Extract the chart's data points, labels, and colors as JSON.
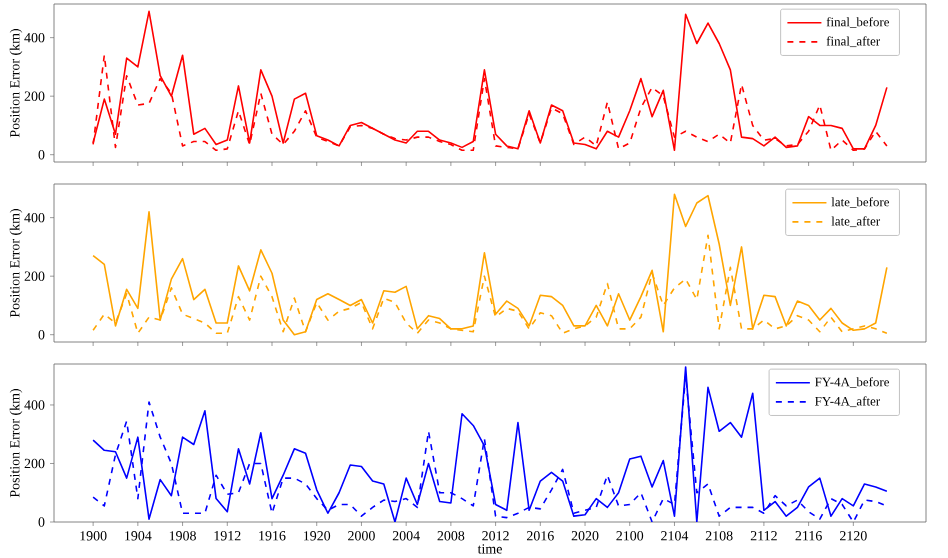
{
  "chart_data": [
    {
      "type": "line",
      "ylabel": "Position Error (km)",
      "ylim": [
        -25,
        515
      ],
      "yticks": [
        0,
        200,
        400
      ],
      "legend": "top right",
      "tick_labels": "y",
      "categories": [
        null,
        null,
        null,
        null,
        null,
        null,
        null,
        null,
        null,
        null,
        null,
        null,
        null,
        null,
        null,
        null,
        null,
        null,
        null,
        null,
        null,
        null,
        null,
        null,
        null,
        null,
        null,
        null,
        null,
        null,
        null,
        null,
        null,
        null,
        null,
        null,
        null,
        null,
        null,
        null,
        null,
        null,
        null,
        null,
        null,
        null,
        null,
        null,
        null,
        null,
        null,
        null,
        null,
        null,
        null,
        null,
        null,
        null,
        null,
        null,
        null,
        null,
        null,
        null,
        null,
        null,
        null,
        null,
        null,
        null,
        null,
        null
      ],
      "series": [
        {
          "name": "final_before",
          "color": "#ff0000",
          "line_style": "solid",
          "values": [
            40,
            190,
            70,
            330,
            300,
            490,
            270,
            200,
            340,
            70,
            90,
            35,
            50,
            235,
            40,
            290,
            200,
            40,
            190,
            210,
            65,
            50,
            30,
            100,
            110,
            90,
            70,
            50,
            40,
            80,
            80,
            50,
            40,
            25,
            45,
            290,
            70,
            30,
            20,
            150,
            40,
            170,
            150,
            40,
            35,
            20,
            80,
            60,
            150,
            260,
            130,
            220,
            15,
            480,
            380,
            450,
            380,
            290,
            60,
            55,
            30,
            60,
            25,
            30,
            130,
            100,
            100,
            90,
            20,
            20,
            100,
            230
          ]
        },
        {
          "name": "final_after",
          "color": "#ff0000",
          "line_style": "dashed",
          "values": [
            35,
            340,
            25,
            270,
            170,
            175,
            260,
            210,
            30,
            45,
            45,
            15,
            20,
            150,
            35,
            210,
            70,
            35,
            80,
            150,
            60,
            45,
            30,
            95,
            100,
            90,
            70,
            55,
            50,
            60,
            60,
            45,
            35,
            15,
            15,
            260,
            30,
            25,
            20,
            140,
            40,
            160,
            140,
            35,
            60,
            30,
            180,
            20,
            40,
            160,
            230,
            200,
            60,
            80,
            60,
            45,
            70,
            40,
            240,
            100,
            50,
            55,
            30,
            35,
            80,
            170,
            15,
            50,
            15,
            20,
            80,
            30
          ]
        }
      ]
    },
    {
      "type": "line",
      "ylabel": "Position Error (km)",
      "ylim": [
        -25,
        515
      ],
      "yticks": [
        0,
        200,
        400
      ],
      "legend": "top right",
      "tick_labels": "y",
      "categories": [
        null,
        null,
        null,
        null,
        null,
        null,
        null,
        null,
        null,
        null,
        null,
        null,
        null,
        null,
        null,
        null,
        null,
        null,
        null,
        null,
        null,
        null,
        null,
        null,
        null,
        null,
        null,
        null,
        null,
        null,
        null,
        null,
        null,
        null,
        null,
        null,
        null,
        null,
        null,
        null,
        null,
        null,
        null,
        null,
        null,
        null,
        null,
        null,
        null,
        null,
        null,
        null,
        null,
        null,
        null,
        null,
        null,
        null,
        null,
        null,
        null,
        null,
        null,
        null,
        null,
        null,
        null,
        null,
        null,
        null,
        null,
        null
      ],
      "series": [
        {
          "name": "late_before",
          "color": "#ffa500",
          "line_style": "solid",
          "values": [
            270,
            240,
            30,
            155,
            90,
            420,
            50,
            190,
            260,
            120,
            155,
            40,
            40,
            235,
            150,
            290,
            210,
            50,
            0,
            10,
            120,
            140,
            120,
            100,
            120,
            40,
            150,
            145,
            165,
            20,
            65,
            55,
            20,
            20,
            30,
            280,
            70,
            115,
            90,
            30,
            135,
            130,
            100,
            30,
            30,
            100,
            30,
            140,
            50,
            130,
            220,
            10,
            480,
            370,
            450,
            475,
            310,
            100,
            300,
            20,
            135,
            130,
            30,
            115,
            100,
            50,
            90,
            40,
            15,
            20,
            40,
            230
          ]
        },
        {
          "name": "late_after",
          "color": "#ffa500",
          "line_style": "dashed",
          "values": [
            15,
            70,
            40,
            140,
            5,
            60,
            50,
            160,
            70,
            55,
            40,
            5,
            5,
            130,
            50,
            200,
            130,
            10,
            125,
            10,
            110,
            50,
            80,
            90,
            110,
            20,
            125,
            110,
            40,
            5,
            50,
            40,
            20,
            15,
            10,
            200,
            60,
            90,
            80,
            20,
            75,
            65,
            5,
            20,
            30,
            60,
            175,
            20,
            20,
            60,
            210,
            100,
            160,
            190,
            120,
            340,
            20,
            230,
            20,
            20,
            50,
            20,
            30,
            65,
            50,
            10,
            60,
            10,
            20,
            30,
            20,
            5
          ]
        }
      ]
    },
    {
      "type": "line",
      "ylabel": "Position Error (km)",
      "xlabel": "time",
      "ylim": [
        0,
        540
      ],
      "yticks": [
        0,
        200,
        400
      ],
      "legend": "top right",
      "categories": [
        "1900",
        null,
        null,
        null,
        "1904",
        null,
        null,
        null,
        "1908",
        null,
        null,
        null,
        "1912",
        null,
        null,
        null,
        "1916",
        null,
        null,
        null,
        "1920",
        null,
        null,
        null,
        "2000",
        null,
        null,
        null,
        "2004",
        null,
        null,
        null,
        "2008",
        null,
        null,
        null,
        "2012",
        null,
        null,
        null,
        "2016",
        null,
        null,
        null,
        "2020",
        null,
        null,
        null,
        "2100",
        null,
        null,
        null,
        "2104",
        null,
        null,
        null,
        "2108",
        null,
        null,
        null,
        "2112",
        null,
        null,
        null,
        "2116",
        null,
        null,
        null,
        "2120",
        null,
        null,
        null
      ],
      "series": [
        {
          "name": "FY-4A_before",
          "color": "#0000ff",
          "line_style": "solid",
          "values": [
            280,
            245,
            240,
            150,
            290,
            10,
            145,
            90,
            290,
            265,
            380,
            80,
            35,
            250,
            130,
            305,
            80,
            160,
            250,
            235,
            110,
            30,
            100,
            195,
            190,
            140,
            130,
            0,
            150,
            60,
            200,
            70,
            65,
            370,
            330,
            260,
            60,
            40,
            340,
            40,
            140,
            170,
            140,
            20,
            25,
            80,
            50,
            100,
            215,
            225,
            120,
            210,
            20,
            530,
            0,
            460,
            310,
            340,
            290,
            440,
            40,
            70,
            20,
            50,
            120,
            150,
            20,
            80,
            55,
            130,
            120,
            105
          ]
        },
        {
          "name": "FY-4A_after",
          "color": "#0000ff",
          "line_style": "dashed",
          "values": [
            85,
            55,
            230,
            345,
            80,
            410,
            290,
            200,
            30,
            30,
            30,
            160,
            95,
            100,
            200,
            200,
            30,
            150,
            150,
            130,
            80,
            40,
            60,
            60,
            20,
            50,
            75,
            70,
            80,
            50,
            310,
            100,
            100,
            80,
            55,
            285,
            20,
            15,
            30,
            50,
            45,
            110,
            180,
            30,
            40,
            50,
            160,
            55,
            60,
            100,
            0,
            80,
            60,
            500,
            100,
            130,
            20,
            50,
            50,
            50,
            30,
            90,
            55,
            75,
            35,
            10,
            80,
            60,
            0,
            75,
            70,
            55
          ]
        }
      ]
    }
  ]
}
